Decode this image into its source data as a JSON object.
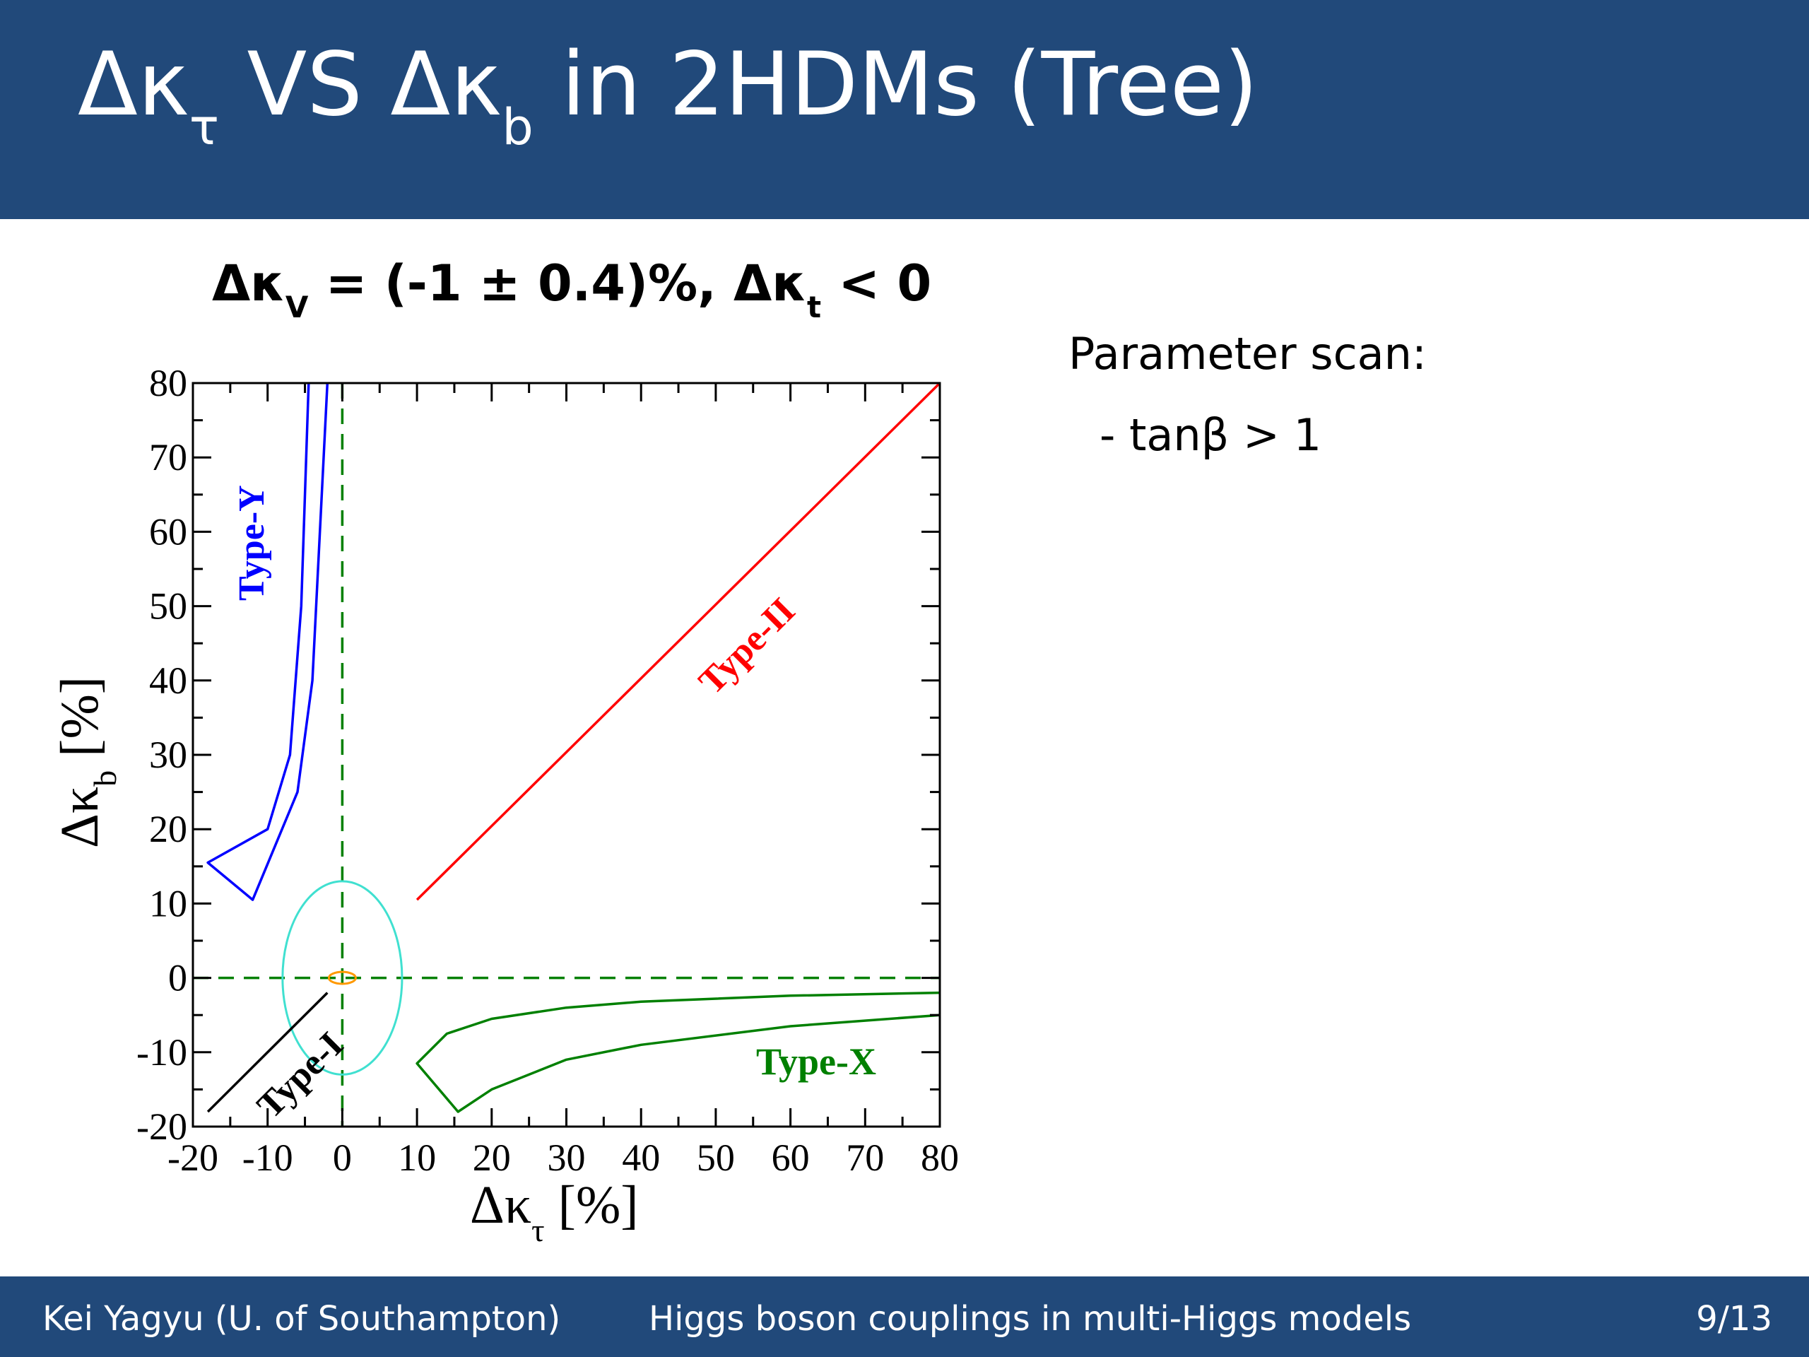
{
  "slide": {
    "title_parts": [
      "Δκ",
      "τ",
      " VS Δκ",
      "b",
      " in 2HDMs (Tree)"
    ],
    "subtitle_parts": [
      "Δκ",
      "V",
      " = (-1 ± 0.4)%, Δκ",
      "t",
      " < 0"
    ],
    "notes": {
      "heading": "Parameter scan:",
      "items": [
        "- tanβ > 1"
      ]
    }
  },
  "footer": {
    "author": "Kei Yagyu (U. of Southampton)",
    "talk_title": "Higgs boson couplings in multi-Higgs models",
    "page": "9/13"
  },
  "colors": {
    "header_bg": "#21497a",
    "type_I": "#000000",
    "type_II": "#ff0000",
    "type_X": "#008000",
    "type_Y": "#0000ff",
    "zero_lines": "#008000",
    "large_ellipse": "#40e0d0",
    "small_ellipse": "#ff9900"
  },
  "chart_data": {
    "type": "line",
    "xlabel_parts": [
      "Δκ",
      "τ",
      " [%]"
    ],
    "ylabel_parts": [
      "Δκ",
      "b",
      " [%]"
    ],
    "xlim": [
      -20,
      80
    ],
    "ylim": [
      -20,
      80
    ],
    "xticks": [
      -20,
      -10,
      0,
      10,
      20,
      30,
      40,
      50,
      60,
      70,
      80
    ],
    "yticks": [
      -20,
      -10,
      0,
      10,
      20,
      30,
      40,
      50,
      60,
      70,
      80
    ],
    "grid": false,
    "reference_lines": [
      {
        "orientation": "vertical",
        "value": 0,
        "style": "dashed"
      },
      {
        "orientation": "horizontal",
        "value": 0,
        "style": "dashed"
      }
    ],
    "series": [
      {
        "name": "Type-I",
        "points": [
          [
            -18,
            -18
          ],
          [
            -2,
            -2
          ]
        ]
      },
      {
        "name": "Type-II",
        "points": [
          [
            10,
            10.5
          ],
          [
            80,
            80
          ]
        ]
      },
      {
        "name": "Type-X",
        "points": [
          [
            80,
            -2
          ],
          [
            60,
            -2.4
          ],
          [
            40,
            -3.2
          ],
          [
            30,
            -4
          ],
          [
            20,
            -5.5
          ],
          [
            14,
            -7.5
          ],
          [
            10,
            -11.5
          ],
          [
            15.5,
            -18
          ],
          [
            20,
            -15
          ],
          [
            30,
            -11
          ],
          [
            40,
            -9
          ],
          [
            60,
            -6.5
          ],
          [
            80,
            -5
          ]
        ]
      },
      {
        "name": "Type-Y",
        "points": [
          [
            -2,
            80
          ],
          [
            -3,
            60
          ],
          [
            -4,
            40
          ],
          [
            -6,
            25
          ],
          [
            -12,
            10.5
          ],
          [
            -18,
            15.5
          ],
          [
            -10,
            20
          ],
          [
            -7,
            30
          ],
          [
            -5.5,
            50
          ],
          [
            -4.5,
            80
          ]
        ]
      }
    ],
    "ellipses": [
      {
        "cx": 0,
        "cy": 0,
        "rx": 8,
        "ry": 13
      },
      {
        "cx": 0,
        "cy": 0,
        "rx": 1.8,
        "ry": 0.8
      }
    ]
  }
}
